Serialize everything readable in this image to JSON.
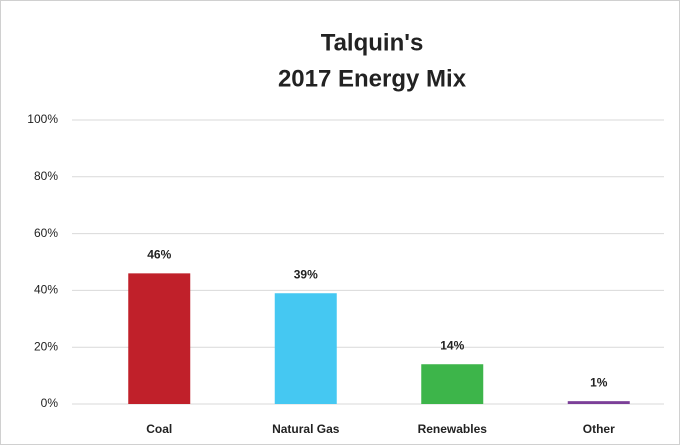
{
  "chart_data": {
    "type": "bar",
    "title": [
      "Talquin's",
      "2017 Energy Mix"
    ],
    "categories": [
      "Coal",
      "Natural Gas",
      "Renewables",
      "Other"
    ],
    "values": [
      46,
      39,
      14,
      1
    ],
    "value_labels": [
      "46%",
      "39%",
      "14%",
      "1%"
    ],
    "colors": [
      "#c0202a",
      "#45c8f2",
      "#3db54a",
      "#7b3f98"
    ],
    "ylim": [
      0,
      100
    ],
    "yticks": [
      {
        "value": 0,
        "label": "0%"
      },
      {
        "value": 20,
        "label": "20%"
      },
      {
        "value": 40,
        "label": "40%"
      },
      {
        "value": 60,
        "label": "60%"
      },
      {
        "value": 80,
        "label": "80%"
      },
      {
        "value": 100,
        "label": "100%"
      }
    ],
    "grid": true
  }
}
